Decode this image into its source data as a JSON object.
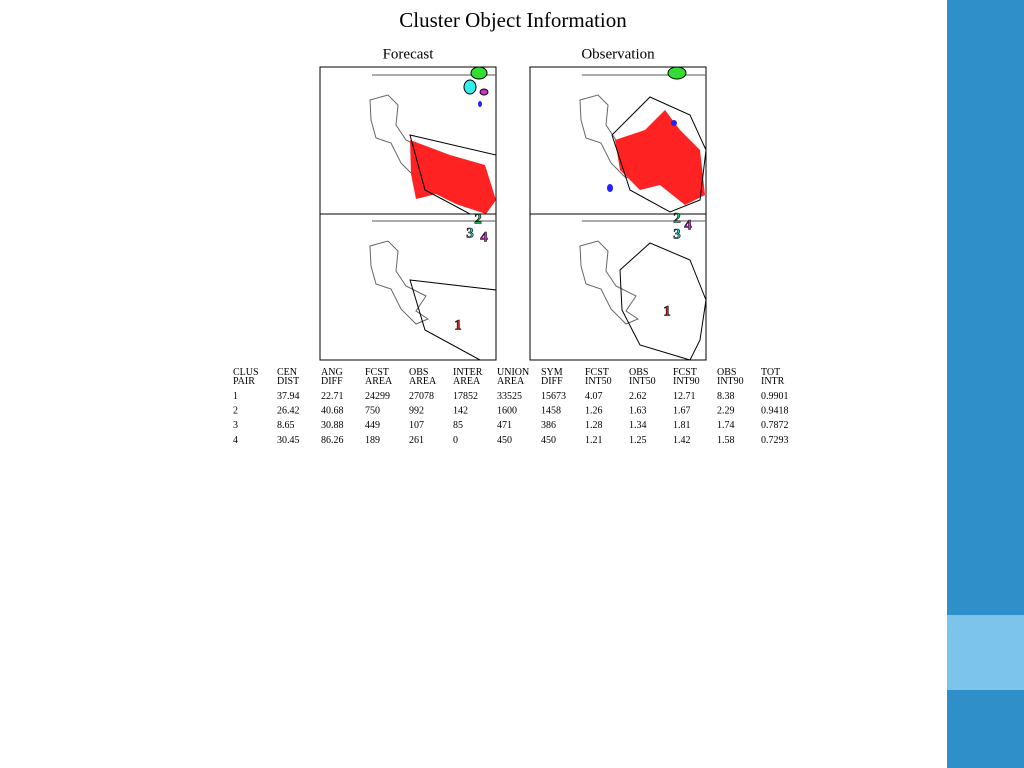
{
  "title": "Cluster Object Information",
  "panels": [
    "Forecast",
    "Observation"
  ],
  "table": {
    "header": [
      [
        "CLUS",
        "PAIR"
      ],
      [
        "CEN",
        "DIST"
      ],
      [
        "ANG",
        "DIFF"
      ],
      [
        "FCST",
        "AREA"
      ],
      [
        "OBS",
        "AREA"
      ],
      [
        "INTER",
        "AREA"
      ],
      [
        "UNION",
        "AREA"
      ],
      [
        "SYM",
        "DIFF"
      ],
      [
        "FCST",
        "INT50"
      ],
      [
        "OBS",
        "INT50"
      ],
      [
        "FCST",
        "INT90"
      ],
      [
        "OBS",
        "INT90"
      ],
      [
        "TOT",
        "INTR"
      ]
    ],
    "rows": [
      [
        "1",
        "37.94",
        "22.71",
        "24299",
        "27078",
        "17852",
        "33525",
        "15673",
        "4.07",
        "2.62",
        "12.71",
        "8.38",
        "0.9901"
      ],
      [
        "2",
        "26.42",
        "40.68",
        "750",
        "992",
        "142",
        "1600",
        "1458",
        "1.26",
        "1.63",
        "1.67",
        "2.29",
        "0.9418"
      ],
      [
        "3",
        "8.65",
        "30.88",
        "449",
        "107",
        "85",
        "471",
        "386",
        "1.28",
        "1.34",
        "1.81",
        "1.74",
        "0.7872"
      ],
      [
        "4",
        "30.45",
        "86.26",
        "189",
        "261",
        "0",
        "450",
        "450",
        "1.21",
        "1.25",
        "1.42",
        "1.58",
        "0.7293"
      ]
    ]
  }
}
